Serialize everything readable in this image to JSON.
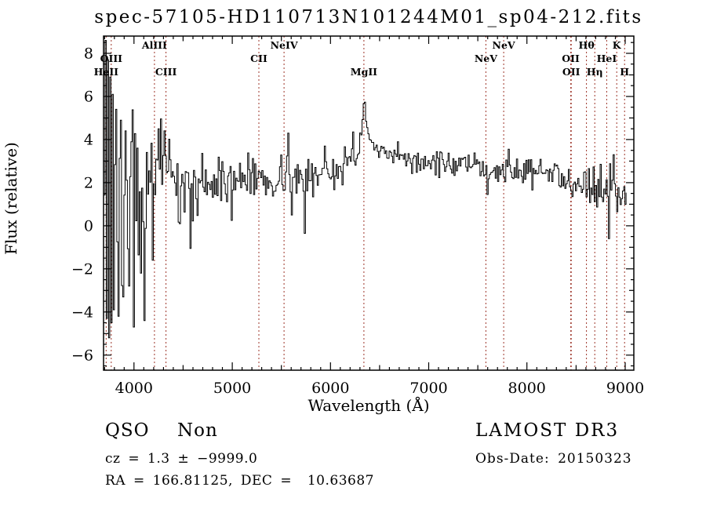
{
  "title": "spec-57105-HD110713N101244M01_sp04-212.fits",
  "annotations": {
    "class_label": "QSO",
    "subclass_label": "Non",
    "cz_line": "cz = 1.3 ± −9999.0",
    "radec_line": "RA = 166.81125, DEC =  10.63687",
    "survey": "LAMOST DR3",
    "obs_date_line": "Obs-Date: 20150323"
  },
  "chart_data": {
    "type": "line",
    "title": "spec-57105-HD110713N101244M01_sp04-212.fits",
    "xlabel": "Wavelength (Å)",
    "ylabel": "Flux (relative)",
    "x_range": [
      3690,
      9088
    ],
    "y_range": [
      -6.7,
      8.8
    ],
    "x_major_ticks": [
      4000,
      5000,
      6000,
      7000,
      8000,
      9000
    ],
    "x_minor_step": 100,
    "y_major_ticks": [
      -6,
      -4,
      -2,
      0,
      2,
      4,
      6,
      8
    ],
    "y_minor_step": 0.5,
    "grid": false,
    "legend": false,
    "trace_color": "#000000",
    "marker_line_color": "#9c3428",
    "spectral_lines": [
      {
        "label": "HeII",
        "wavelength": 3716,
        "row": 3
      },
      {
        "label": "OIII",
        "wavelength": 3768,
        "row": 2
      },
      {
        "label": "AlIII",
        "wavelength": 4208,
        "row": 1
      },
      {
        "label": "CIII",
        "wavelength": 4326,
        "row": 3
      },
      {
        "label": "CII",
        "wavelength": 5271,
        "row": 2
      },
      {
        "label": "NeIV",
        "wavelength": 5527,
        "row": 1
      },
      {
        "label": "MgII",
        "wavelength": 6340,
        "row": 3
      },
      {
        "label": "NeV",
        "wavelength": 7582,
        "row": 2
      },
      {
        "label": "NeV",
        "wavelength": 7763,
        "row": 1
      },
      {
        "label": "OII",
        "wavelength": 8446,
        "row": 2
      },
      {
        "label": "OII",
        "wavelength": 8451,
        "row": 3
      },
      {
        "label": "Hθ",
        "wavelength": 8606,
        "row": 1
      },
      {
        "label": "Hη",
        "wavelength": 8690,
        "row": 3
      },
      {
        "label": "HeI",
        "wavelength": 8812,
        "row": 2
      },
      {
        "label": "K",
        "wavelength": 8914,
        "row": 1
      },
      {
        "label": "H",
        "wavelength": 8994,
        "row": 3
      }
    ],
    "spectrum": {
      "sample_step_angstrom": 12,
      "seed": 13,
      "clip": [
        -5.6,
        8.75
      ],
      "continuum_points": [
        [
          3690,
          2.0
        ],
        [
          3800,
          1.6
        ],
        [
          3900,
          1.4
        ],
        [
          4000,
          1.2
        ],
        [
          4100,
          1.5
        ],
        [
          4160,
          2.2
        ],
        [
          4230,
          3.2
        ],
        [
          4300,
          3.3
        ],
        [
          4350,
          2.7
        ],
        [
          4430,
          1.5
        ],
        [
          4520,
          1.5
        ],
        [
          4600,
          1.8
        ],
        [
          4700,
          2.1
        ],
        [
          4800,
          2.0
        ],
        [
          4900,
          2.1
        ],
        [
          5000,
          2.1
        ],
        [
          5100,
          2.3
        ],
        [
          5200,
          2.2
        ],
        [
          5300,
          2.2
        ],
        [
          5400,
          2.15
        ],
        [
          5500,
          2.3
        ],
        [
          5560,
          2.5
        ],
        [
          5650,
          2.1
        ],
        [
          5750,
          2.1
        ],
        [
          5850,
          2.3
        ],
        [
          5950,
          2.4
        ],
        [
          6050,
          2.7
        ],
        [
          6150,
          2.9
        ],
        [
          6250,
          3.3
        ],
        [
          6310,
          4.0
        ],
        [
          6330,
          5.5
        ],
        [
          6343,
          6.05
        ],
        [
          6356,
          5.6
        ],
        [
          6375,
          4.3
        ],
        [
          6420,
          3.5
        ],
        [
          6500,
          3.3
        ],
        [
          6600,
          3.2
        ],
        [
          6700,
          3.15
        ],
        [
          6800,
          3.05
        ],
        [
          6900,
          3.0
        ],
        [
          7000,
          2.95
        ],
        [
          7100,
          2.85
        ],
        [
          7200,
          2.9
        ],
        [
          7300,
          2.75
        ],
        [
          7400,
          2.7
        ],
        [
          7500,
          2.65
        ],
        [
          7600,
          2.6
        ],
        [
          7700,
          2.6
        ],
        [
          7800,
          2.55
        ],
        [
          7900,
          2.5
        ],
        [
          8000,
          2.55
        ],
        [
          8100,
          2.5
        ],
        [
          8200,
          2.45
        ],
        [
          8300,
          2.35
        ],
        [
          8400,
          2.25
        ],
        [
          8500,
          2.15
        ],
        [
          8600,
          2.0
        ],
        [
          8700,
          1.9
        ],
        [
          8780,
          1.75
        ],
        [
          8840,
          1.9
        ],
        [
          8880,
          2.2
        ],
        [
          8910,
          1.3
        ],
        [
          8940,
          1.6
        ],
        [
          9010,
          1.4
        ]
      ],
      "noise_sigma_points": [
        [
          3690,
          3.5
        ],
        [
          3780,
          3.0
        ],
        [
          3850,
          2.2
        ],
        [
          3950,
          1.7
        ],
        [
          4050,
          1.5
        ],
        [
          4150,
          1.1
        ],
        [
          4250,
          0.65
        ],
        [
          4350,
          0.8
        ],
        [
          4450,
          0.75
        ],
        [
          4600,
          0.6
        ],
        [
          4800,
          0.55
        ],
        [
          5000,
          0.5
        ],
        [
          5200,
          0.55
        ],
        [
          5400,
          0.5
        ],
        [
          5600,
          0.5
        ],
        [
          5800,
          0.45
        ],
        [
          6000,
          0.4
        ],
        [
          6200,
          0.35
        ],
        [
          6340,
          0.22
        ],
        [
          6500,
          0.28
        ],
        [
          6700,
          0.3
        ],
        [
          7000,
          0.28
        ],
        [
          7300,
          0.3
        ],
        [
          7600,
          0.33
        ],
        [
          7900,
          0.3
        ],
        [
          8200,
          0.3
        ],
        [
          8500,
          0.35
        ],
        [
          8700,
          0.55
        ],
        [
          8900,
          0.6
        ],
        [
          9010,
          0.45
        ]
      ],
      "spike_points": [
        [
          3700,
          8.6
        ],
        [
          3712,
          -4.3
        ],
        [
          3724,
          7.7
        ],
        [
          3736,
          -5.2
        ],
        [
          3748,
          6.9
        ],
        [
          3762,
          -4.5
        ],
        [
          3776,
          6.1
        ],
        [
          3790,
          -3.9
        ],
        [
          3812,
          5.4
        ],
        [
          3836,
          -4.2
        ],
        [
          3860,
          4.9
        ],
        [
          3884,
          -3.3
        ],
        [
          3912,
          4.4
        ],
        [
          3948,
          -2.8
        ],
        [
          3972,
          3.9
        ],
        [
          3996,
          -4.7
        ],
        [
          4028,
          3.6
        ],
        [
          4064,
          -2.2
        ],
        [
          4100,
          -4.4
        ],
        [
          4128,
          3.4
        ],
        [
          4180,
          -1.6
        ],
        [
          4240,
          4.5
        ],
        [
          4308,
          4.4
        ],
        [
          4565,
          -1.05
        ],
        [
          4990,
          0.25
        ],
        [
          5565,
          4.3
        ],
        [
          5601,
          0.5
        ],
        [
          5730,
          -0.35
        ],
        [
          5935,
          3.7
        ],
        [
          6228,
          4.35
        ],
        [
          6360,
          4.85
        ],
        [
          7588,
          1.45
        ],
        [
          7805,
          3.55
        ],
        [
          8455,
          1.35
        ],
        [
          8830,
          -0.6
        ],
        [
          8872,
          3.3
        ],
        [
          8918,
          0.65
        ]
      ]
    }
  }
}
